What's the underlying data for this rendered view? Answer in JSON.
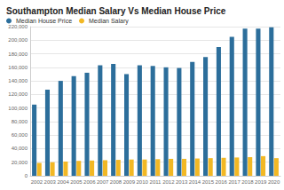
{
  "chart_data": {
    "type": "bar",
    "title": "Southampton Median Salary Vs Median House Price",
    "categories": [
      "2002",
      "2003",
      "2004",
      "2005",
      "2006",
      "2007",
      "2008",
      "2009",
      "2010",
      "2011",
      "2012",
      "2013",
      "2014",
      "2015",
      "2016",
      "2017",
      "2018",
      "2019",
      "2020"
    ],
    "series": [
      {
        "name": "Median House Price",
        "color": "#2c6e9b",
        "values": [
          105000,
          127000,
          140000,
          147000,
          152000,
          163000,
          165000,
          150000,
          163000,
          162000,
          160000,
          159000,
          168000,
          175000,
          190000,
          205000,
          217000,
          217000,
          219000
        ]
      },
      {
        "name": "Median Salary",
        "color": "#f2b824",
        "values": [
          19000,
          20000,
          21000,
          22000,
          22500,
          23000,
          23500,
          24000,
          24000,
          24500,
          25000,
          25000,
          25500,
          26000,
          26500,
          27000,
          27500,
          29000,
          26000
        ]
      }
    ],
    "ylim": [
      0,
      220000
    ],
    "yticks": [
      0,
      {
        "value": 20000,
        "label": "20,000"
      },
      {
        "value": 40000,
        "label": "40,000"
      },
      {
        "value": 60000,
        "label": "60,000"
      },
      {
        "value": 80000,
        "label": "80,000"
      },
      {
        "value": 100000,
        "label": "100,000"
      },
      {
        "value": 120000,
        "label": "120,000"
      },
      {
        "value": 140000,
        "label": "140,000"
      },
      {
        "value": 160000,
        "label": "160,000"
      },
      {
        "value": 180000,
        "label": "180,000"
      },
      {
        "value": 200000,
        "label": "200,000"
      },
      {
        "value": 220000,
        "label": "220,000"
      }
    ],
    "grid": true,
    "legend": "top-left"
  }
}
